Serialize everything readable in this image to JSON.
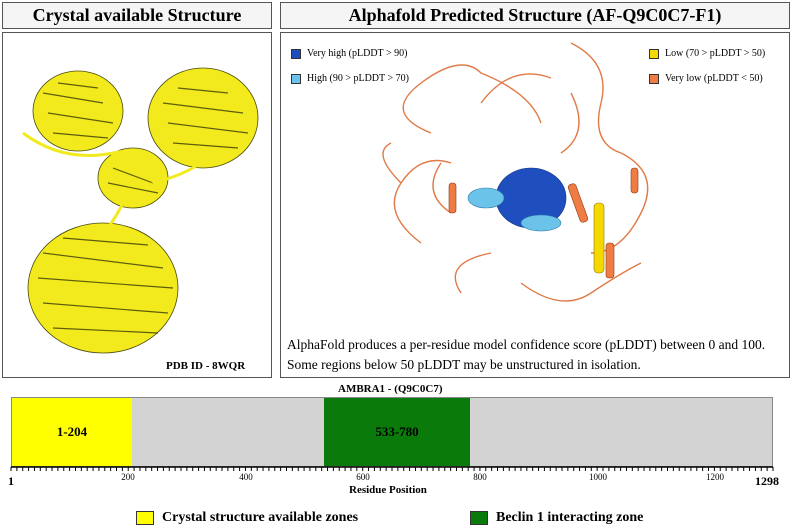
{
  "left_panel": {
    "title": "Crystal available Structure",
    "pdb_id": "PDB ID - 8WQR"
  },
  "right_panel": {
    "title": "Alphafold Predicted Structure (AF-Q9C0C7-F1)",
    "legend": [
      {
        "label": "Very high (pLDDT > 90)",
        "color": "#1f4fbf"
      },
      {
        "label": "High (90 > pLDDT > 70)",
        "color": "#6cc3ea"
      },
      {
        "label": "Low (70 > pLDDT > 50)",
        "color": "#f5d800"
      },
      {
        "label": "Very low (pLDDT < 50)",
        "color": "#f07c45"
      }
    ],
    "caption": "AlphaFold produces a per-residue model confidence score (pLDDT) between 0 and 100. Some regions below 50 pLDDT may be unstructured in isolation."
  },
  "domain_map": {
    "title": "AMBRA1 - (Q9C0C7)",
    "xlabel": "Residue Position",
    "start_label": "1",
    "end_label": "1298",
    "length": 1298,
    "tick_labels": [
      "200",
      "400",
      "600",
      "800",
      "1000",
      "1200"
    ],
    "track_color": "#d3d3d3",
    "regions": [
      {
        "label": "1-204",
        "start": 1,
        "end": 204,
        "color": "#ffff00"
      },
      {
        "label": "533-780",
        "start": 533,
        "end": 780,
        "color": "#0a7a0a"
      }
    ]
  },
  "legend": [
    {
      "label": "Crystal structure available zones",
      "color": "#ffff00"
    },
    {
      "label": "Beclin 1 interacting zone",
      "color": "#0a7a0a"
    }
  ]
}
